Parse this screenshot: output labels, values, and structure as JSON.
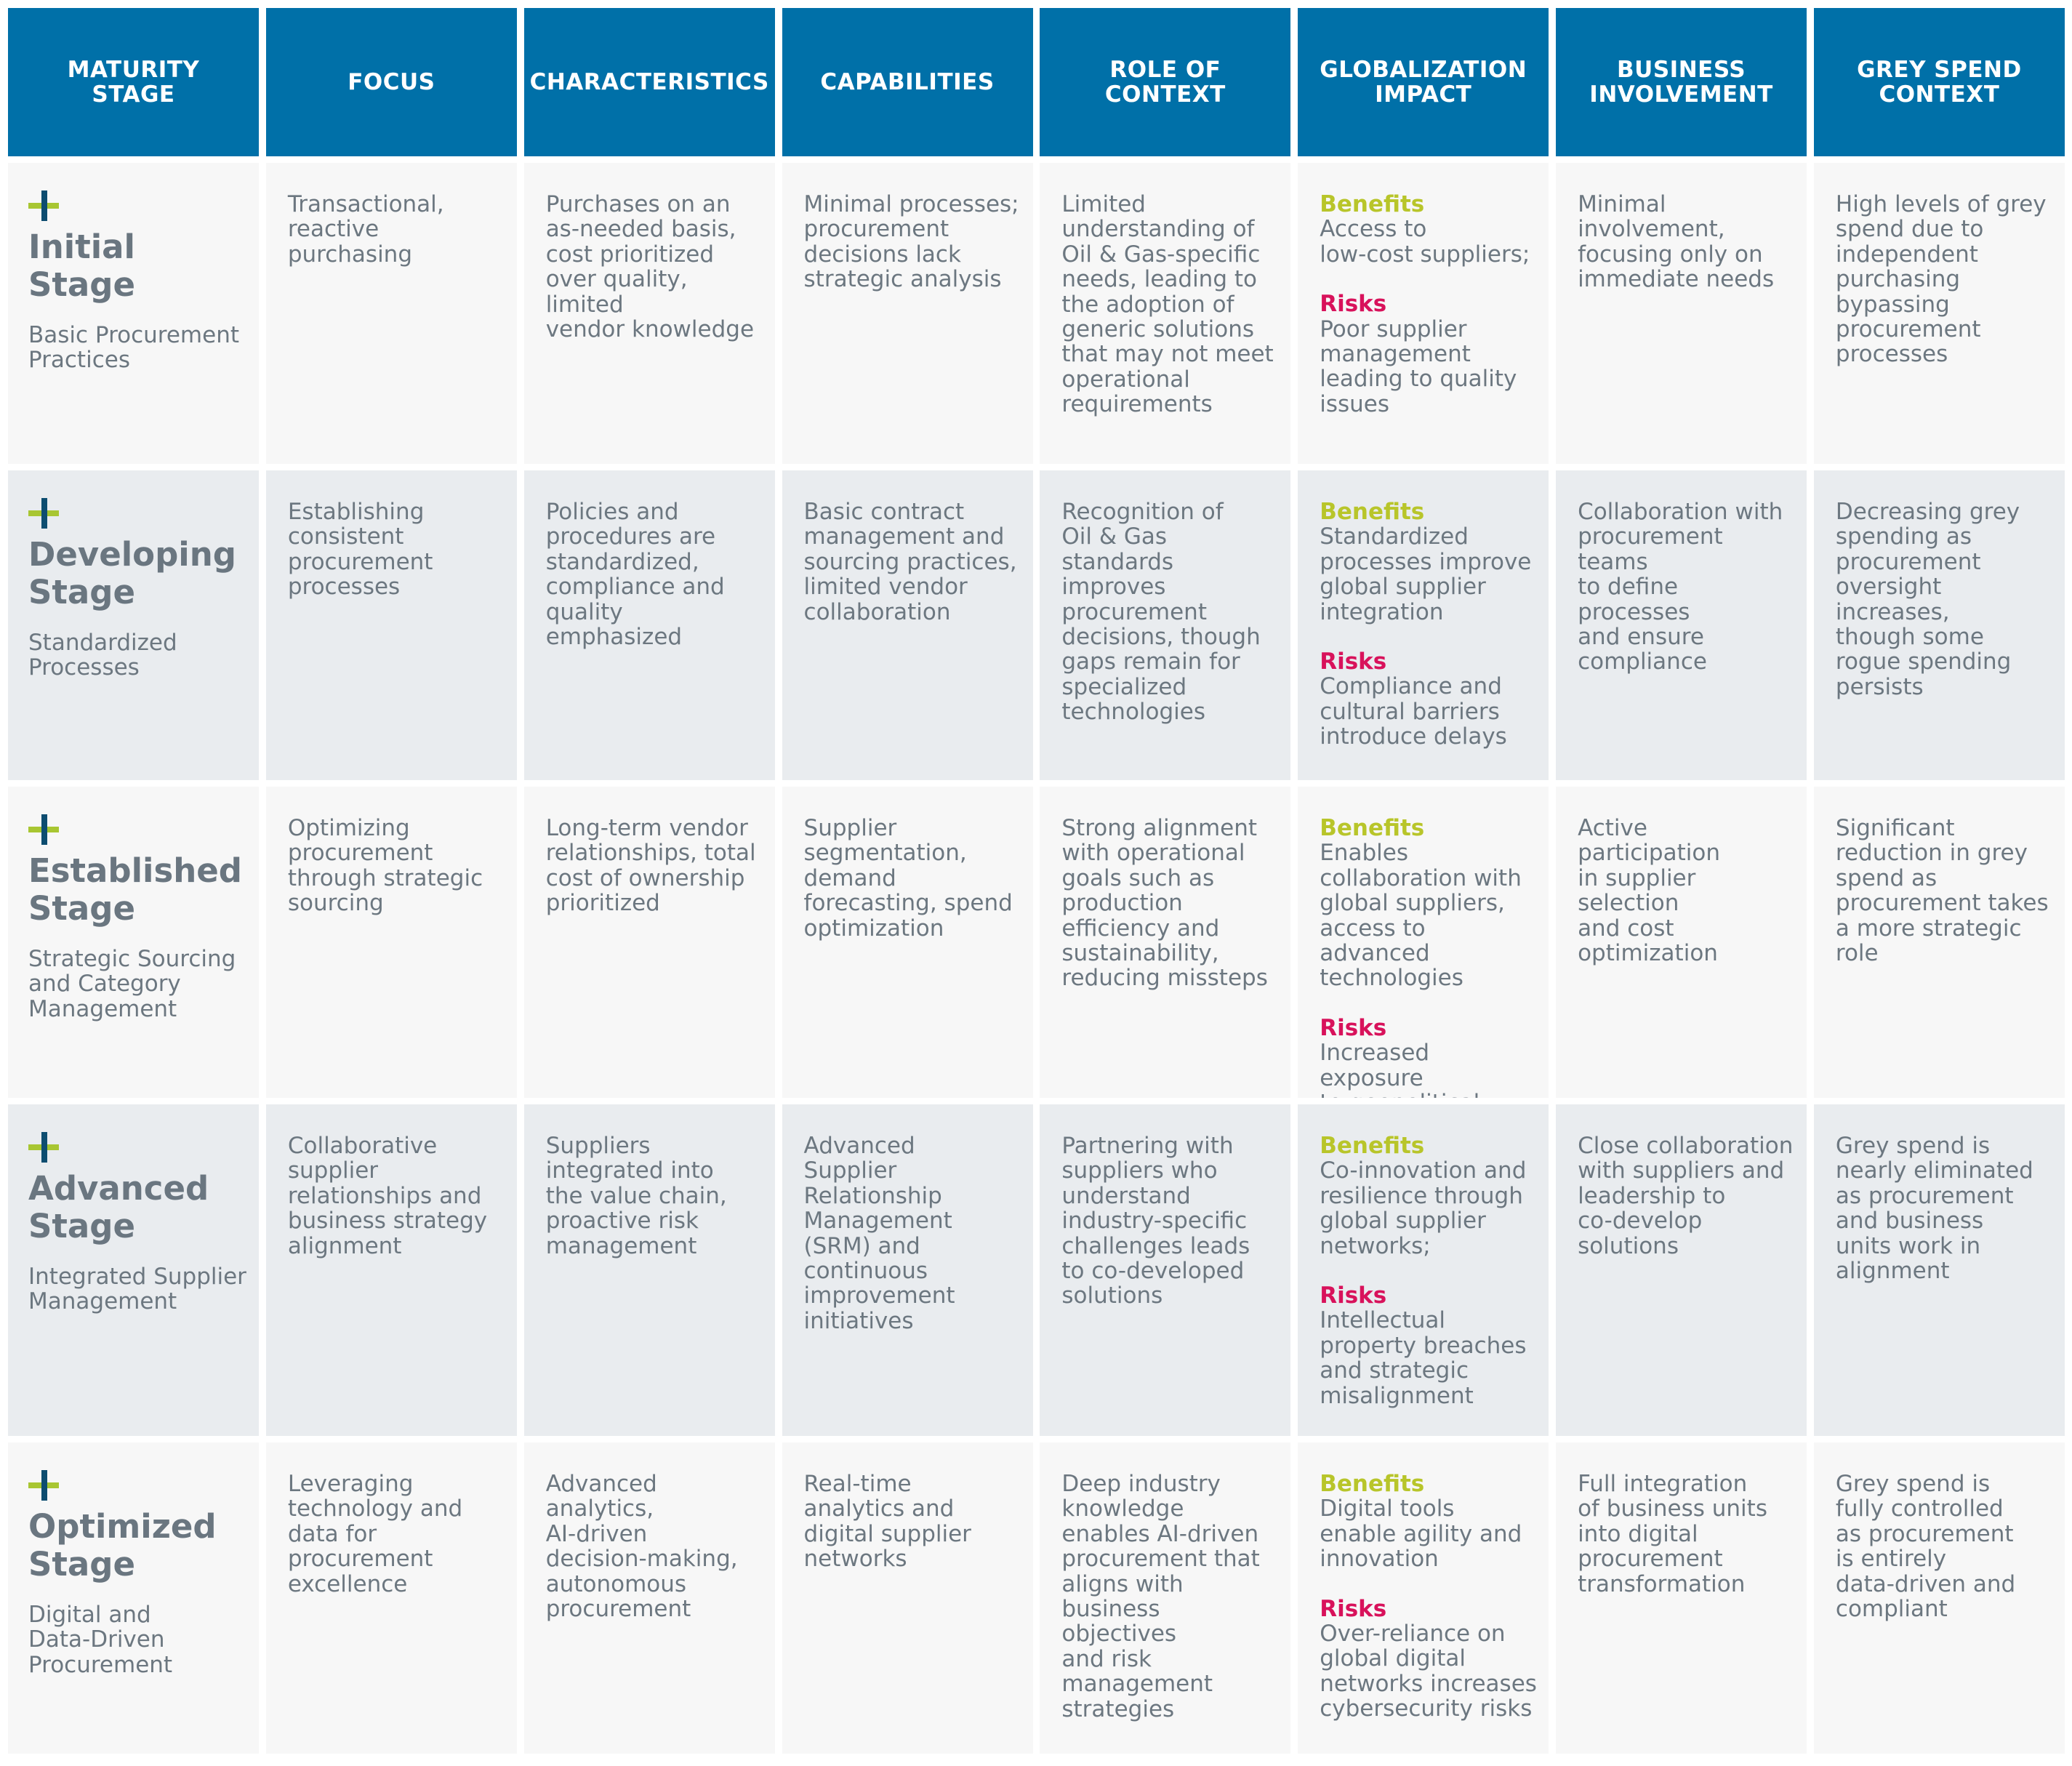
{
  "headers": [
    "MATURITY\nSTAGE",
    "FOCUS",
    "CHARACTERISTICS",
    "CAPABILITIES",
    "ROLE OF\nCONTEXT",
    "GLOBALIZATION\nIMPACT",
    "BUSINESS\nINVOLVEMENT",
    "GREY SPEND\nCONTEXT"
  ],
  "labels": {
    "benefits": "Benefits",
    "risks": "Risks"
  },
  "colors": {
    "header_bg": "#0070a8",
    "benefits": "#b8c52a",
    "risks": "#d8125b",
    "text": "#6c7780",
    "plus_blue": "#0d4d70",
    "plus_green": "#a8c632"
  },
  "icons": {
    "stage_marker": "plus-icon"
  },
  "rows": [
    {
      "stage_title": "Initial\nStage",
      "stage_subtitle": "Basic Procurement\nPractices",
      "focus": "Transactional,\nreactive\npurchasing",
      "characteristics": "Purchases on an\nas-needed basis,\ncost prioritized\nover quality, limited\nvendor knowledge",
      "capabilities": "Minimal processes;\nprocurement\ndecisions lack\nstrategic analysis",
      "role": "Limited\nunderstanding of\nOil & Gas-specific\nneeds, leading to\nthe adoption of\ngeneric solutions\nthat may not meet\noperational\nrequirements",
      "benefits": "Access to\nlow-cost suppliers;",
      "risks": "Poor supplier\nmanagement\nleading to quality\nissues",
      "business": "Minimal\ninvolvement,\nfocusing only on\nimmediate needs",
      "grey": "High levels of grey\nspend due to\nindependent\npurchasing\nbypassing\nprocurement\nprocesses"
    },
    {
      "stage_title": "Developing\nStage",
      "stage_subtitle": "Standardized\nProcesses",
      "focus": "Establishing\nconsistent\nprocurement\nprocesses",
      "characteristics": "Policies and\nprocedures are\nstandardized,\ncompliance and\nquality emphasized",
      "capabilities": "Basic contract\nmanagement and\nsourcing practices,\nlimited vendor\ncollaboration",
      "role": "Recognition of\nOil & Gas standards\nimproves\nprocurement\ndecisions, though\ngaps remain for\nspecialized\ntechnologies",
      "benefits": "Standardized\nprocesses improve\nglobal supplier\nintegration",
      "risks": "Compliance and\ncultural barriers\nintroduce delays",
      "business": "Collaboration with\nprocurement teams\nto define processes\nand ensure\ncompliance",
      "grey": "Decreasing grey\nspending as\nprocurement\noversight increases,\nthough some\nrogue spending\npersists"
    },
    {
      "stage_title": "Established\nStage",
      "stage_subtitle": "Strategic Sourcing\nand Category\nManagement",
      "focus": "Optimizing\nprocurement\nthrough strategic\nsourcing",
      "characteristics": "Long-term vendor\nrelationships, total\ncost of ownership\nprioritized",
      "capabilities": "Supplier\nsegmentation,\ndemand\nforecasting, spend\noptimization",
      "role": "Strong alignment\nwith operational\ngoals such as\nproduction\nefficiency and\nsustainability,\nreducing missteps",
      "benefits": "Enables\ncollaboration with\nglobal suppliers,\naccess to advanced\ntechnologies",
      "risks": "Increased exposure\nto geopolitical risks",
      "business": "Active participation\nin supplier selection\nand cost\noptimization",
      "grey": "Significant\nreduction in grey\nspend as\nprocurement takes\na more strategic\nrole"
    },
    {
      "stage_title": "Advanced\nStage",
      "stage_subtitle": "Integrated Supplier\nManagement",
      "focus": "Collaborative\nsupplier\nrelationships and\nbusiness strategy\nalignment",
      "characteristics": "Suppliers\nintegrated into\nthe value chain,\nproactive risk\nmanagement",
      "capabilities": "Advanced\nSupplier\nRelationship\nManagement\n(SRM) and\ncontinuous\nimprovement\ninitiatives",
      "role": "Partnering with\nsuppliers who\nunderstand\nindustry-specific\nchallenges leads\nto co-developed\nsolutions",
      "benefits": "Co-innovation and\nresilience through\nglobal supplier\nnetworks;",
      "risks": "Intellectual\nproperty breaches\nand strategic\nmisalignment",
      "business": "Close collaboration\nwith suppliers and\nleadership to\nco-develop\nsolutions",
      "grey": "Grey spend is\nnearly eliminated\nas procurement\nand business\nunits work in\nalignment"
    },
    {
      "stage_title": "Optimized\nStage",
      "stage_subtitle": "Digital and\nData-Driven\nProcurement",
      "focus": "Leveraging\ntechnology and\ndata for\nprocurement\nexcellence",
      "characteristics": "Advanced analytics,\nAI-driven\ndecision-making,\nautonomous\nprocurement",
      "capabilities": "Real-time\nanalytics and\ndigital supplier\nnetworks",
      "role": "Deep industry\nknowledge\nenables AI-driven\nprocurement that\naligns with\nbusiness objectives\nand risk\nmanagement\nstrategies",
      "benefits": "Digital tools\nenable agility and\ninnovation",
      "risks": "Over-reliance on\nglobal digital\nnetworks increases\ncybersecurity risks",
      "business": "Full integration\nof business units\ninto digital\nprocurement\ntransformation",
      "grey": "Grey spend is\nfully controlled\nas procurement\nis entirely\ndata-driven and\ncompliant"
    }
  ]
}
